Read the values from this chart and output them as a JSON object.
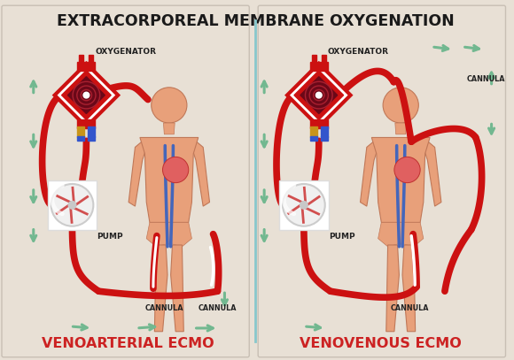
{
  "title": "EXTRACORPOREAL MEMBRANE OXYGENATION",
  "title_fontsize": 12.5,
  "title_color": "#1a1a1a",
  "bg_color": "#e8e0d5",
  "divider_color": "#88c8cc",
  "left_label": "VENOARTERIAL ECMO",
  "right_label": "VENOVENOUS ECMO",
  "label_fontsize": 11.5,
  "label_color": "#cc2222",
  "oxygenator_label": "OXYGENATOR",
  "pump_label": "PUMP",
  "cannula_label": "CANNULA",
  "red_color": "#cc1111",
  "dark_red": "#6a0818",
  "body_color": "#e8a07a",
  "body_outline": "#c07858",
  "arrow_color": "#72b890",
  "blue_tube": "#4466cc",
  "label_text_color": "#222222",
  "oxygenator_border": "#cc1111",
  "pump_bg": "#f0f0f0",
  "pump_border": "#cccccc"
}
